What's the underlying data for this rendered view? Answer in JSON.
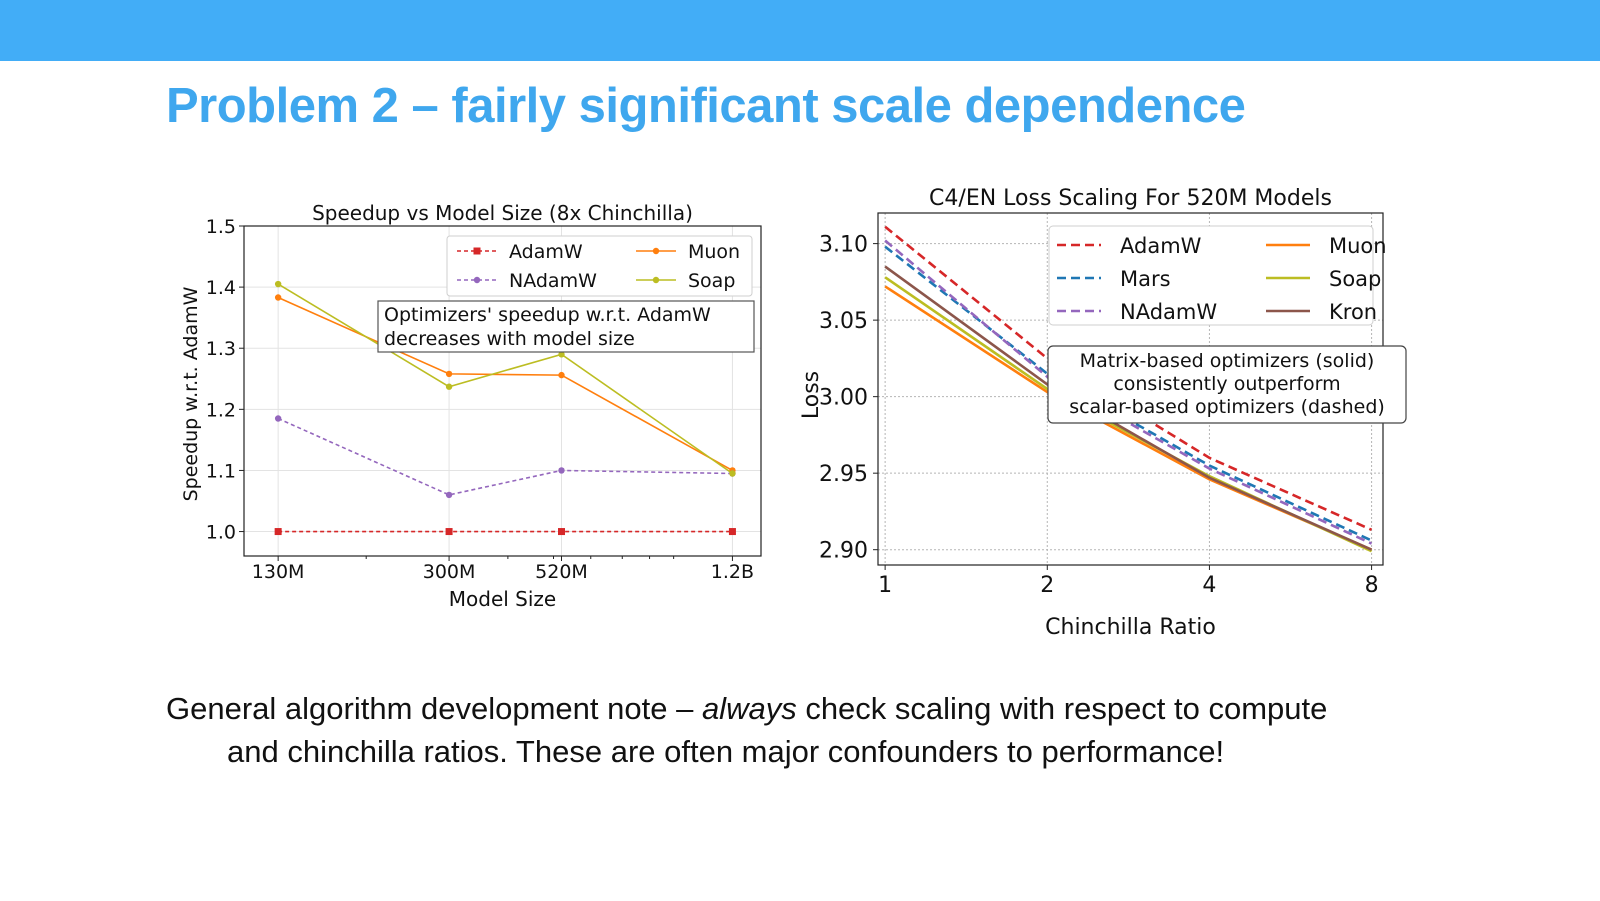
{
  "slide": {
    "title": "Problem 2 – fairly significant scale dependence",
    "note": {
      "part1": "General algorithm development note – ",
      "italic": "always",
      "part2": " check scaling with respect to compute",
      "line2": "and chinchilla ratios. These are often major confounders to performance!"
    }
  },
  "colors": {
    "topbar": "#42adf7",
    "title": "#3fa7ee",
    "AdamW": "#d62728",
    "Mars": "#1f77b4",
    "NAdamW": "#9467bd",
    "Muon": "#ff7f0e",
    "Soap": "#bcbd22",
    "Kron": "#8c564b"
  },
  "chart_data": [
    {
      "type": "line",
      "title": "Speedup vs Model Size (8x Chinchilla)",
      "xlabel": "Model Size",
      "ylabel": "Speedup w.r.t. AdamW",
      "x_scale": "log",
      "x": [
        130,
        300,
        520,
        1200
      ],
      "x_unit": "M parameters",
      "x_tick_labels": [
        "130M",
        "300M",
        "520M",
        "1.2B"
      ],
      "ylim": [
        0.96,
        1.5
      ],
      "y_ticks": [
        1.0,
        1.1,
        1.2,
        1.3,
        1.4,
        1.5
      ],
      "grid": true,
      "legend_position": "top-right",
      "markers": true,
      "series": [
        {
          "name": "AdamW",
          "style": "dashed",
          "values": [
            1.0,
            1.0,
            1.0,
            1.0
          ]
        },
        {
          "name": "Muon",
          "style": "solid",
          "values": [
            1.383,
            1.258,
            1.256,
            1.1
          ]
        },
        {
          "name": "NAdamW",
          "style": "dashed",
          "values": [
            1.185,
            1.06,
            1.1,
            1.095
          ]
        },
        {
          "name": "Soap",
          "style": "solid",
          "values": [
            1.405,
            1.237,
            1.29,
            1.095
          ]
        }
      ],
      "annotation": [
        "Optimizers' speedup w.r.t. AdamW",
        " decreases with model size"
      ]
    },
    {
      "type": "line",
      "title": "C4/EN Loss Scaling For 520M Models",
      "xlabel": "Chinchilla Ratio",
      "ylabel": "Loss",
      "x": [
        1,
        2,
        4,
        8
      ],
      "x_scale": "log2",
      "xlim": [
        0.97,
        8.4
      ],
      "ylim": [
        2.89,
        3.12
      ],
      "y_ticks": [
        2.9,
        2.95,
        3.0,
        3.05,
        3.1
      ],
      "grid": true,
      "legend_position": "top-right",
      "markers": false,
      "series": [
        {
          "name": "AdamW",
          "style": "dashed",
          "values": [
            3.111,
            3.025,
            2.96,
            2.913
          ]
        },
        {
          "name": "Mars",
          "style": "dashed",
          "values": [
            3.098,
            3.015,
            2.955,
            2.906
          ]
        },
        {
          "name": "NAdamW",
          "style": "dashed",
          "values": [
            3.102,
            3.013,
            2.953,
            2.904
          ]
        },
        {
          "name": "Muon",
          "style": "solid",
          "values": [
            3.072,
            3.003,
            2.946,
            2.9
          ]
        },
        {
          "name": "Soap",
          "style": "solid",
          "values": [
            3.078,
            3.005,
            2.948,
            2.899
          ]
        },
        {
          "name": "Kron",
          "style": "solid",
          "values": [
            3.085,
            3.008,
            2.947,
            2.9
          ]
        }
      ],
      "annotation": [
        "Matrix-based optimizers (solid)",
        "consistently outperform",
        "scalar-based optimizers (dashed)"
      ]
    }
  ]
}
